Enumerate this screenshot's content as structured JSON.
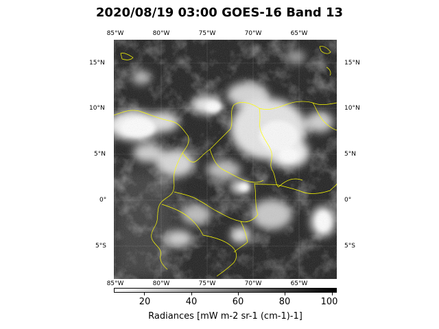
{
  "title": "2020/08/19 03:00 GOES-16 Band 13",
  "map": {
    "lon_ticks": [
      "85°W",
      "80°W",
      "75°W",
      "70°W",
      "65°W"
    ],
    "lat_ticks": [
      "15°N",
      "10°N",
      "5°N",
      "0°",
      "5°S"
    ],
    "coastline_color": "#ffff00"
  },
  "colorbar": {
    "ticks": [
      "20",
      "40",
      "60",
      "80",
      "100"
    ],
    "label": "Radiances [mW m-2 sr-1 (cm-1)-1]",
    "range": [
      7,
      102
    ],
    "colormap": "gray_r"
  }
}
